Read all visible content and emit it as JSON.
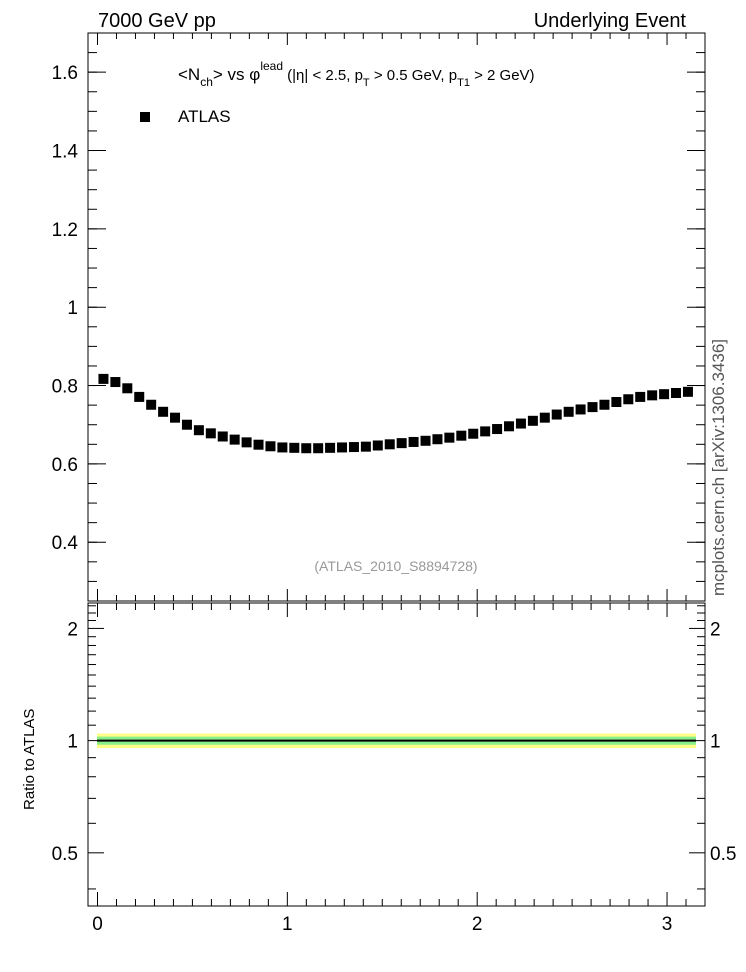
{
  "header": {
    "left": "7000 GeV pp",
    "right": "Underlying Event"
  },
  "side_label": "mcplots.cern.ch [arXiv:1306.3436]",
  "chart_data": [
    {
      "type": "scatter",
      "title_parts": {
        "a": "<N",
        "a_sub": "ch",
        "b": "> vs φ",
        "b_sup": "lead",
        "c": " (|η| < 2.5, p",
        "c_sub": "T",
        "d": " > 0.5 GeV, p",
        "d_sub": "T1",
        "e": " > 2 GeV)"
      },
      "legend": {
        "label": "ATLAS",
        "marker_color": "#000000",
        "placement": "top-left"
      },
      "watermark": "(ATLAS_2010_S8894728)",
      "xlim": [
        -0.05,
        3.2
      ],
      "ylim": [
        0.25,
        1.7
      ],
      "yticks": [
        0.4,
        0.6,
        0.8,
        1,
        1.2,
        1.4,
        1.6
      ],
      "ytick_labels": [
        "0.4",
        "0.6",
        "0.8",
        "1",
        "1.2",
        "1.4",
        "1.6"
      ],
      "series": [
        {
          "name": "ATLAS",
          "x": [
            0.0314,
            0.0942,
            0.1571,
            0.2199,
            0.2827,
            0.3456,
            0.4084,
            0.4712,
            0.5341,
            0.5969,
            0.6597,
            0.7226,
            0.7854,
            0.8482,
            0.9111,
            0.9739,
            1.0367,
            1.0996,
            1.1624,
            1.2252,
            1.2881,
            1.3509,
            1.4137,
            1.4765,
            1.5394,
            1.6022,
            1.665,
            1.7279,
            1.7907,
            1.8535,
            1.9164,
            1.9792,
            2.042,
            2.1049,
            2.1677,
            2.2305,
            2.2934,
            2.3562,
            2.419,
            2.4819,
            2.5447,
            2.6075,
            2.6704,
            2.7332,
            2.796,
            2.8588,
            2.9217,
            2.9845,
            3.0473,
            3.1102
          ],
          "y": [
            0.817,
            0.809,
            0.793,
            0.771,
            0.751,
            0.733,
            0.718,
            0.7,
            0.686,
            0.678,
            0.67,
            0.662,
            0.655,
            0.649,
            0.645,
            0.642,
            0.641,
            0.64,
            0.64,
            0.641,
            0.642,
            0.643,
            0.644,
            0.647,
            0.65,
            0.653,
            0.656,
            0.659,
            0.663,
            0.667,
            0.672,
            0.677,
            0.683,
            0.689,
            0.696,
            0.703,
            0.71,
            0.718,
            0.726,
            0.733,
            0.739,
            0.745,
            0.751,
            0.758,
            0.765,
            0.771,
            0.775,
            0.778,
            0.781,
            0.784
          ]
        }
      ]
    },
    {
      "type": "band",
      "ylabel": "Ratio to ATLAS",
      "xlim": [
        -0.05,
        3.2
      ],
      "ylim": [
        0.36,
        2.34
      ],
      "yticks": [
        0.5,
        1,
        2
      ],
      "ytick_labels": [
        "0.5",
        "1",
        "2"
      ],
      "xticks": [
        0,
        1,
        2,
        3
      ],
      "xtick_labels": [
        "0",
        "1",
        "2",
        "3"
      ],
      "reference_line": 1,
      "bands": [
        {
          "lo": 0.955,
          "hi": 1.045,
          "color": "#ffff88"
        },
        {
          "lo": 0.975,
          "hi": 1.025,
          "color": "#88ee88"
        }
      ]
    }
  ]
}
